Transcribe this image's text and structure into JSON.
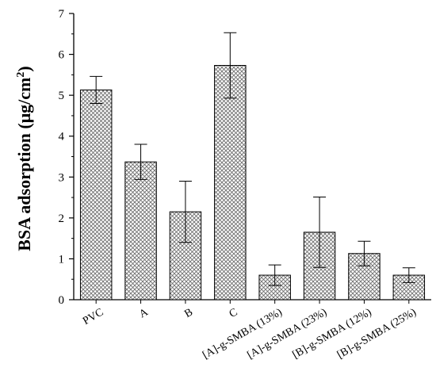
{
  "chart_data": {
    "type": "bar",
    "title": "",
    "xlabel": "",
    "ylabel": "BSA adsorption (μg/cm²)",
    "ylabel_parts": {
      "main": "BSA adsorption (μg/cm",
      "sup": "2",
      "close": ")"
    },
    "ylim": [
      0,
      7
    ],
    "yticks": [
      "0",
      "1",
      "2",
      "3",
      "4",
      "5",
      "6",
      "7"
    ],
    "grid": false,
    "legend": "none",
    "bar_pattern": "crosshatch",
    "bar_color": "#888888",
    "categories": [
      "PVC",
      "A",
      "B",
      "C",
      "[A]-g-SMBA (13%)",
      "[A]-g-SMBA (23%)",
      "[B]-g-SMBA (12%)",
      "[B]-g-SMBA (25%)"
    ],
    "values": [
      5.13,
      3.37,
      2.15,
      5.73,
      0.6,
      1.65,
      1.13,
      0.6
    ],
    "errors": [
      0.33,
      0.43,
      0.75,
      0.8,
      0.25,
      0.86,
      0.3,
      0.18
    ]
  }
}
